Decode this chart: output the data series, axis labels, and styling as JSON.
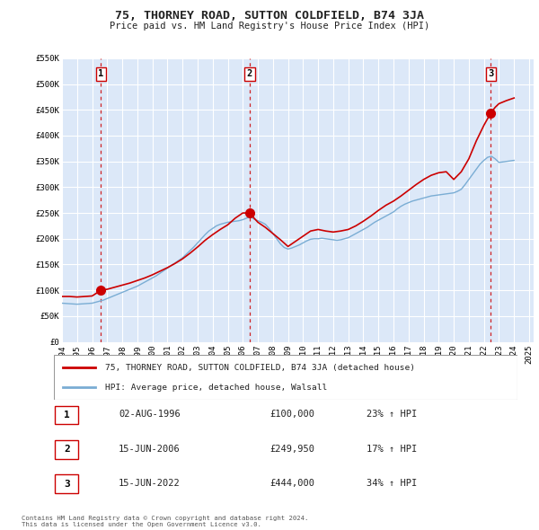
{
  "title": "75, THORNEY ROAD, SUTTON COLDFIELD, B74 3JA",
  "subtitle": "Price paid vs. HM Land Registry's House Price Index (HPI)",
  "ylim": [
    0,
    550000
  ],
  "yticks": [
    0,
    50000,
    100000,
    150000,
    200000,
    250000,
    300000,
    350000,
    400000,
    450000,
    500000,
    550000
  ],
  "ytick_labels": [
    "£0",
    "£50K",
    "£100K",
    "£150K",
    "£200K",
    "£250K",
    "£300K",
    "£350K",
    "£400K",
    "£450K",
    "£500K",
    "£550K"
  ],
  "xlim_start": 1994.0,
  "xlim_end": 2025.3,
  "xticks": [
    1994,
    1995,
    1996,
    1997,
    1998,
    1999,
    2000,
    2001,
    2002,
    2003,
    2004,
    2005,
    2006,
    2007,
    2008,
    2009,
    2010,
    2011,
    2012,
    2013,
    2014,
    2015,
    2016,
    2017,
    2018,
    2019,
    2020,
    2021,
    2022,
    2023,
    2024,
    2025
  ],
  "plot_bg_color": "#dce8f8",
  "grid_color": "#ffffff",
  "red_line_color": "#cc0000",
  "blue_line_color": "#7aadd4",
  "marker_color": "#cc0000",
  "dashed_line_color": "#cc0000",
  "sale_points": [
    {
      "year": 1996.583,
      "price": 100000,
      "label": "1"
    },
    {
      "year": 2006.458,
      "price": 249950,
      "label": "2"
    },
    {
      "year": 2022.458,
      "price": 444000,
      "label": "3"
    }
  ],
  "legend_line1": "75, THORNEY ROAD, SUTTON COLDFIELD, B74 3JA (detached house)",
  "legend_line2": "HPI: Average price, detached house, Walsall",
  "table_rows": [
    {
      "num": "1",
      "date": "02-AUG-1996",
      "price": "£100,000",
      "hpi": "23% ↑ HPI"
    },
    {
      "num": "2",
      "date": "15-JUN-2006",
      "price": "£249,950",
      "hpi": "17% ↑ HPI"
    },
    {
      "num": "3",
      "date": "15-JUN-2022",
      "price": "£444,000",
      "hpi": "34% ↑ HPI"
    }
  ],
  "footnote": "Contains HM Land Registry data © Crown copyright and database right 2024.\nThis data is licensed under the Open Government Licence v3.0.",
  "hpi_data": {
    "years": [
      1994.0,
      1994.25,
      1994.5,
      1994.75,
      1995.0,
      1995.25,
      1995.5,
      1995.75,
      1996.0,
      1996.25,
      1996.5,
      1996.75,
      1997.0,
      1997.25,
      1997.5,
      1997.75,
      1998.0,
      1998.25,
      1998.5,
      1998.75,
      1999.0,
      1999.25,
      1999.5,
      1999.75,
      2000.0,
      2000.25,
      2000.5,
      2000.75,
      2001.0,
      2001.25,
      2001.5,
      2001.75,
      2002.0,
      2002.25,
      2002.5,
      2002.75,
      2003.0,
      2003.25,
      2003.5,
      2003.75,
      2004.0,
      2004.25,
      2004.5,
      2004.75,
      2005.0,
      2005.25,
      2005.5,
      2005.75,
      2006.0,
      2006.25,
      2006.5,
      2006.75,
      2007.0,
      2007.25,
      2007.5,
      2007.75,
      2008.0,
      2008.25,
      2008.5,
      2008.75,
      2009.0,
      2009.25,
      2009.5,
      2009.75,
      2010.0,
      2010.25,
      2010.5,
      2010.75,
      2011.0,
      2011.25,
      2011.5,
      2011.75,
      2012.0,
      2012.25,
      2012.5,
      2012.75,
      2013.0,
      2013.25,
      2013.5,
      2013.75,
      2014.0,
      2014.25,
      2014.5,
      2014.75,
      2015.0,
      2015.25,
      2015.5,
      2015.75,
      2016.0,
      2016.25,
      2016.5,
      2016.75,
      2017.0,
      2017.25,
      2017.5,
      2017.75,
      2018.0,
      2018.25,
      2018.5,
      2018.75,
      2019.0,
      2019.25,
      2019.5,
      2019.75,
      2020.0,
      2020.25,
      2020.5,
      2020.75,
      2021.0,
      2021.25,
      2021.5,
      2021.75,
      2022.0,
      2022.25,
      2022.5,
      2022.75,
      2023.0,
      2023.25,
      2023.5,
      2023.75,
      2024.0
    ],
    "values": [
      75000,
      74500,
      74000,
      73500,
      73000,
      73500,
      74000,
      74500,
      75000,
      77000,
      79000,
      81000,
      84000,
      87000,
      90000,
      93000,
      96000,
      99000,
      102000,
      105000,
      108000,
      112000,
      116000,
      120000,
      124000,
      128000,
      133000,
      138000,
      143000,
      148000,
      153000,
      158000,
      163000,
      170000,
      177000,
      184000,
      192000,
      200000,
      208000,
      215000,
      220000,
      225000,
      228000,
      230000,
      232000,
      233000,
      234000,
      235000,
      237000,
      240000,
      243000,
      238000,
      235000,
      232000,
      228000,
      220000,
      210000,
      200000,
      190000,
      183000,
      180000,
      182000,
      185000,
      188000,
      192000,
      196000,
      199000,
      200000,
      200000,
      201000,
      200000,
      199000,
      198000,
      197000,
      198000,
      200000,
      202000,
      206000,
      210000,
      214000,
      218000,
      222000,
      227000,
      232000,
      236000,
      240000,
      244000,
      248000,
      252000,
      258000,
      263000,
      267000,
      270000,
      273000,
      275000,
      277000,
      279000,
      281000,
      283000,
      284000,
      285000,
      286000,
      287000,
      288000,
      289000,
      292000,
      296000,
      305000,
      315000,
      325000,
      335000,
      345000,
      352000,
      358000,
      360000,
      355000,
      348000,
      349000,
      350000,
      351000,
      352000
    ]
  },
  "property_data": {
    "years": [
      1994.0,
      1994.5,
      1995.0,
      1995.5,
      1996.0,
      1996.583,
      1997.0,
      1997.5,
      1998.0,
      1998.5,
      1999.0,
      1999.5,
      2000.0,
      2000.5,
      2001.0,
      2001.5,
      2002.0,
      2002.5,
      2003.0,
      2003.5,
      2004.0,
      2004.5,
      2005.0,
      2005.5,
      2006.0,
      2006.458,
      2006.75,
      2007.0,
      2007.5,
      2008.0,
      2008.5,
      2009.0,
      2009.5,
      2010.0,
      2010.5,
      2011.0,
      2011.5,
      2012.0,
      2012.5,
      2013.0,
      2013.5,
      2014.0,
      2014.5,
      2015.0,
      2015.5,
      2016.0,
      2016.5,
      2017.0,
      2017.5,
      2018.0,
      2018.5,
      2019.0,
      2019.5,
      2020.0,
      2020.5,
      2021.0,
      2021.5,
      2022.0,
      2022.458,
      2022.75,
      2023.0,
      2023.5,
      2024.0
    ],
    "values": [
      88000,
      88000,
      87000,
      88000,
      89000,
      100000,
      102000,
      106000,
      110000,
      114000,
      119000,
      124000,
      130000,
      137000,
      144000,
      152000,
      161000,
      172000,
      184000,
      197000,
      208000,
      218000,
      227000,
      240000,
      250000,
      249950,
      240000,
      232000,
      222000,
      210000,
      198000,
      185000,
      195000,
      205000,
      215000,
      218000,
      215000,
      213000,
      215000,
      218000,
      225000,
      234000,
      244000,
      255000,
      265000,
      273000,
      283000,
      294000,
      305000,
      315000,
      323000,
      328000,
      330000,
      315000,
      330000,
      355000,
      390000,
      420000,
      444000,
      455000,
      462000,
      468000,
      473000
    ]
  }
}
